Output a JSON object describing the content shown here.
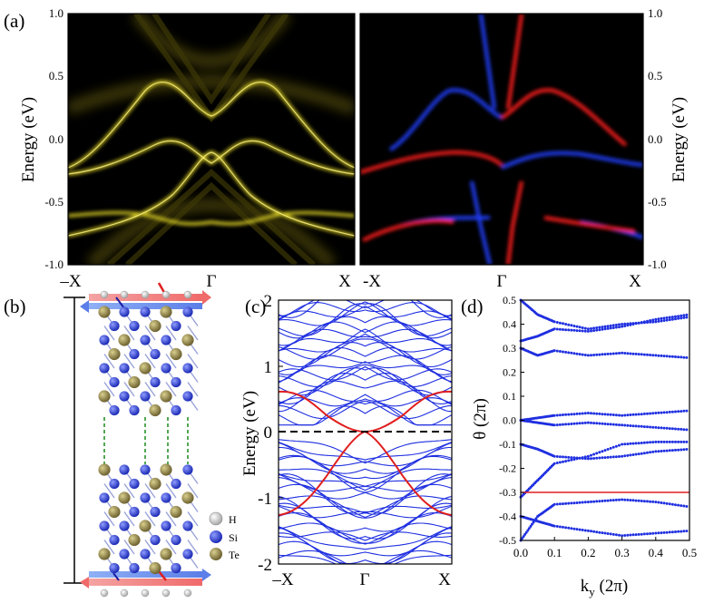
{
  "panels": {
    "a": {
      "label": "(a)",
      "ylabel": "Energy (eV)",
      "yticks": [
        "1.0",
        "0.5",
        "0.0",
        "-0.5",
        "-1.0"
      ],
      "xticks": [
        "–X",
        "Γ",
        "X"
      ],
      "xticks_right": [
        "-X",
        "Γ",
        "X"
      ],
      "colors": {
        "bulk": "#e0d31a",
        "spin_up": "#ff1e1e",
        "spin_down": "#1e3cff",
        "background": "#000000"
      }
    },
    "b": {
      "label": "(b)",
      "legend": [
        {
          "symbol": "H",
          "color": "#d8d8d8"
        },
        {
          "symbol": "Si",
          "color": "#2f3fcf"
        },
        {
          "symbol": "Te",
          "color": "#8c7f3e"
        }
      ]
    },
    "c": {
      "label": "(c)",
      "ylabel": "Energy (eV)",
      "yticks": [
        "2",
        "1",
        "0",
        "-1",
        "-2"
      ],
      "xticks": [
        "–X",
        "Γ",
        "X"
      ],
      "colors": {
        "bulk_bands": "#1f2fe0",
        "edge_bands": "#e01f1f",
        "fermi": "#000000"
      }
    },
    "d": {
      "label": "(d)",
      "ylabel": "θ (2π)",
      "xlabel_main": "k",
      "xlabel_sub": "y",
      "xlabel_unit": " (2π)",
      "yticks": [
        "0.5",
        "0.4",
        "0.3",
        "0.2",
        "0.1",
        "0.0",
        "-0.1",
        "-0.2",
        "-0.3",
        "-0.4",
        "-0.5"
      ],
      "xticks": [
        "0.0",
        "0.1",
        "0.2",
        "0.3",
        "0.4",
        "0.5"
      ],
      "reference_line": -0.3,
      "colors": {
        "wcc": "#1f2fe0",
        "reference": "#e01f1f"
      }
    }
  },
  "chart_data": [
    {
      "type": "heatmap",
      "panel": "a-left",
      "ylabel": "Energy (eV)",
      "ylim": [
        -1.0,
        1.0
      ],
      "xtick_labels": [
        "–X",
        "Γ",
        "X"
      ],
      "bands": [
        {
          "k": [
            -1,
            -0.75,
            -0.5,
            -0.25,
            0,
            0.25,
            0.5,
            0.75,
            1
          ],
          "E": [
            -0.2,
            -0.1,
            0.1,
            0.45,
            0.2,
            0.45,
            0.1,
            -0.1,
            -0.2
          ]
        },
        {
          "k": [
            -1,
            -0.75,
            -0.5,
            -0.25,
            0,
            0.25,
            0.5,
            0.75,
            1
          ],
          "E": [
            -0.25,
            -0.15,
            -0.05,
            0.05,
            -0.1,
            0.05,
            -0.05,
            -0.15,
            -0.25
          ]
        },
        {
          "k": [
            -1,
            -0.75,
            -0.5,
            -0.25,
            0,
            0.25,
            0.5,
            0.75,
            1
          ],
          "E": [
            -0.85,
            -0.75,
            -0.6,
            -0.3,
            -0.15,
            -0.3,
            -0.6,
            -0.75,
            -0.85
          ]
        }
      ]
    },
    {
      "type": "heatmap",
      "panel": "a-right",
      "ylabel": "Energy (eV)",
      "ylim": [
        -1.0,
        1.0
      ],
      "xtick_labels": [
        "-X",
        "Γ",
        "X"
      ]
    },
    {
      "type": "line",
      "panel": "c",
      "ylabel": "Energy (eV)",
      "ylim": [
        -2,
        2
      ],
      "xtick_labels": [
        "–X",
        "Γ",
        "X"
      ],
      "fermi_level": 0
    },
    {
      "type": "scatter",
      "panel": "d",
      "ylabel": "θ (2π)",
      "xlabel": "ky (2π)",
      "xlim": [
        0.0,
        0.5
      ],
      "ylim": [
        -0.5,
        0.5
      ],
      "reference_line": -0.3,
      "series": [
        {
          "x": [
            0,
            0.05,
            0.1,
            0.2,
            0.3,
            0.4,
            0.5
          ],
          "y": [
            0.33,
            0.35,
            0.38,
            0.37,
            0.39,
            0.42,
            0.44
          ]
        },
        {
          "x": [
            0,
            0.05,
            0.1,
            0.2,
            0.3,
            0.4,
            0.5
          ],
          "y": [
            0.5,
            0.44,
            0.41,
            0.38,
            0.4,
            0.41,
            0.43
          ]
        },
        {
          "x": [
            0,
            0.05,
            0.1,
            0.2,
            0.3,
            0.4,
            0.5
          ],
          "y": [
            0.3,
            0.27,
            0.29,
            0.27,
            0.28,
            0.27,
            0.26
          ]
        },
        {
          "x": [
            0,
            0.05,
            0.1,
            0.2,
            0.3,
            0.4,
            0.5
          ],
          "y": [
            0.0,
            0.01,
            0.02,
            0.03,
            0.02,
            0.03,
            0.04
          ]
        },
        {
          "x": [
            0,
            0.05,
            0.1,
            0.2,
            0.3,
            0.4,
            0.5
          ],
          "y": [
            0.0,
            -0.01,
            -0.02,
            -0.01,
            -0.02,
            -0.03,
            -0.04
          ]
        },
        {
          "x": [
            0,
            0.05,
            0.1,
            0.2,
            0.3,
            0.4,
            0.5
          ],
          "y": [
            -0.1,
            -0.12,
            -0.15,
            -0.16,
            -0.15,
            -0.13,
            -0.12
          ]
        },
        {
          "x": [
            0,
            0.05,
            0.1,
            0.2,
            0.3,
            0.4,
            0.5
          ],
          "y": [
            -0.32,
            -0.25,
            -0.18,
            -0.15,
            -0.1,
            -0.09,
            -0.09
          ]
        },
        {
          "x": [
            0,
            0.05,
            0.1,
            0.2,
            0.3,
            0.4,
            0.5
          ],
          "y": [
            -0.5,
            -0.4,
            -0.35,
            -0.34,
            -0.33,
            -0.34,
            -0.36
          ]
        },
        {
          "x": [
            0,
            0.05,
            0.1,
            0.2,
            0.3,
            0.4,
            0.5
          ],
          "y": [
            -0.4,
            -0.42,
            -0.44,
            -0.46,
            -0.48,
            -0.47,
            -0.46
          ]
        }
      ]
    }
  ]
}
